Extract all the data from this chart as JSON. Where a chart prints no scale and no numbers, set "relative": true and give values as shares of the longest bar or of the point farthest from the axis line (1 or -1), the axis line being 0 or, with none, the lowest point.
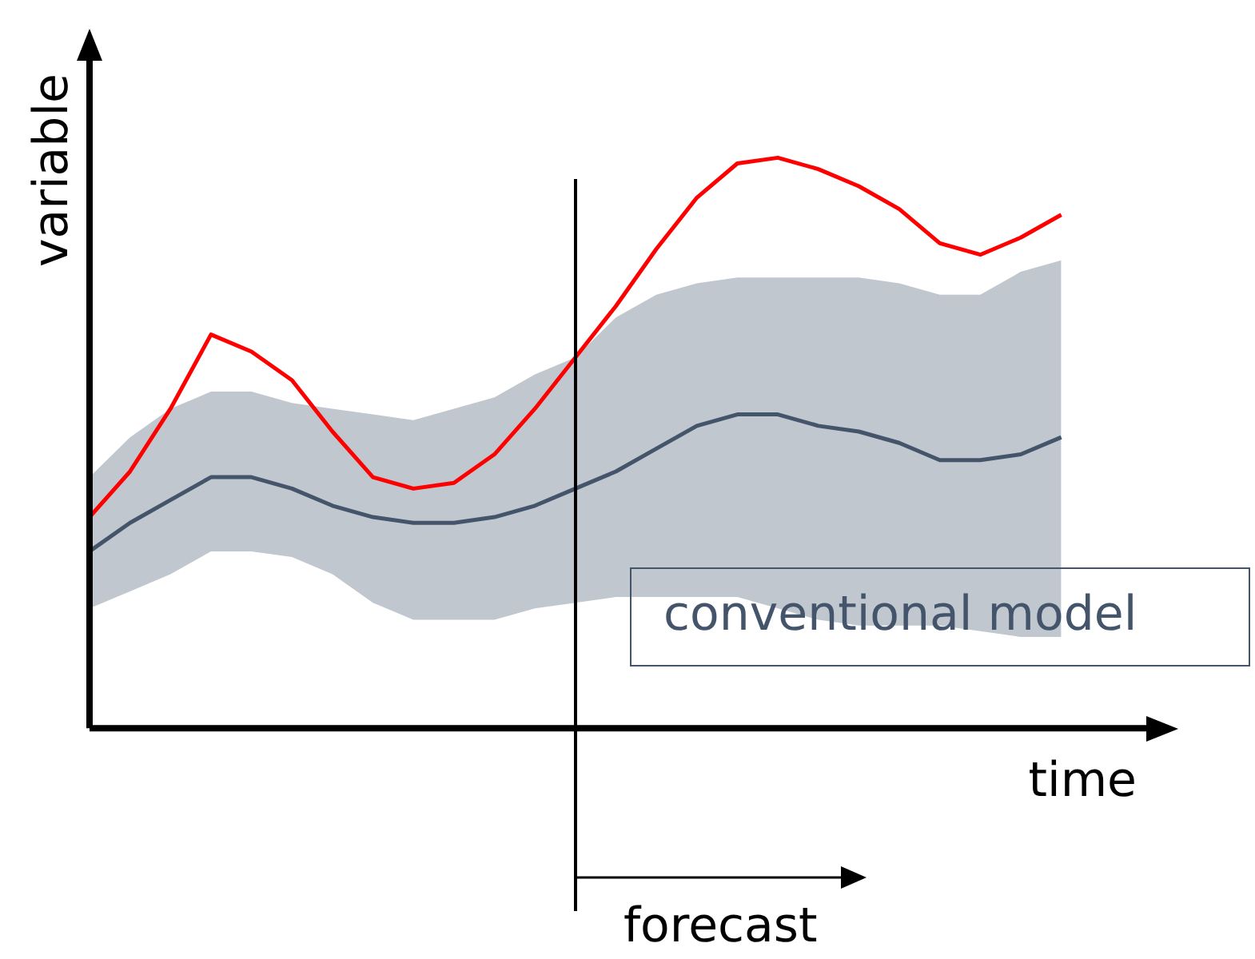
{
  "chart_data": {
    "type": "line",
    "relative": true,
    "xlabel": "time",
    "ylabel": "variable",
    "grid": false,
    "legend": false,
    "marker": "none",
    "line_style": "solid",
    "categories": [
      null,
      null,
      null,
      null,
      null,
      null,
      null,
      null,
      null,
      null,
      null,
      null,
      null,
      null,
      null,
      null,
      null,
      null,
      null,
      null,
      null,
      null,
      null,
      null,
      null
    ],
    "series": [
      {
        "color": "#44546a",
        "values": [
          0.31,
          0.36,
          0.4,
          0.44,
          0.44,
          0.42,
          0.39,
          0.37,
          0.36,
          0.36,
          0.37,
          0.39,
          0.42,
          0.45,
          0.49,
          0.53,
          0.55,
          0.55,
          0.53,
          0.52,
          0.5,
          0.47,
          0.47,
          0.48,
          0.51
        ],
        "lower": [
          0.21,
          0.24,
          0.27,
          0.31,
          0.31,
          0.3,
          0.27,
          0.22,
          0.19,
          0.19,
          0.19,
          0.21,
          0.22,
          0.23,
          0.23,
          0.23,
          0.23,
          0.21,
          0.19,
          0.18,
          0.18,
          0.18,
          0.17,
          0.16,
          0.16
        ],
        "upper": [
          0.44,
          0.51,
          0.56,
          0.59,
          0.59,
          0.57,
          0.56,
          0.55,
          0.54,
          0.56,
          0.58,
          0.62,
          0.65,
          0.72,
          0.76,
          0.78,
          0.79,
          0.79,
          0.79,
          0.79,
          0.78,
          0.76,
          0.76,
          0.8,
          0.82
        ]
      },
      {
        "color": "#ff0000",
        "values": [
          0.37,
          0.45,
          0.56,
          0.69,
          0.66,
          0.61,
          0.52,
          0.44,
          0.42,
          0.43,
          0.48,
          0.56,
          0.65,
          0.74,
          0.84,
          0.93,
          0.99,
          1,
          0.98,
          0.95,
          0.91,
          0.85,
          0.83,
          0.86,
          0.9
        ]
      }
    ],
    "annotations": [
      "conventional model",
      "forecast"
    ]
  }
}
